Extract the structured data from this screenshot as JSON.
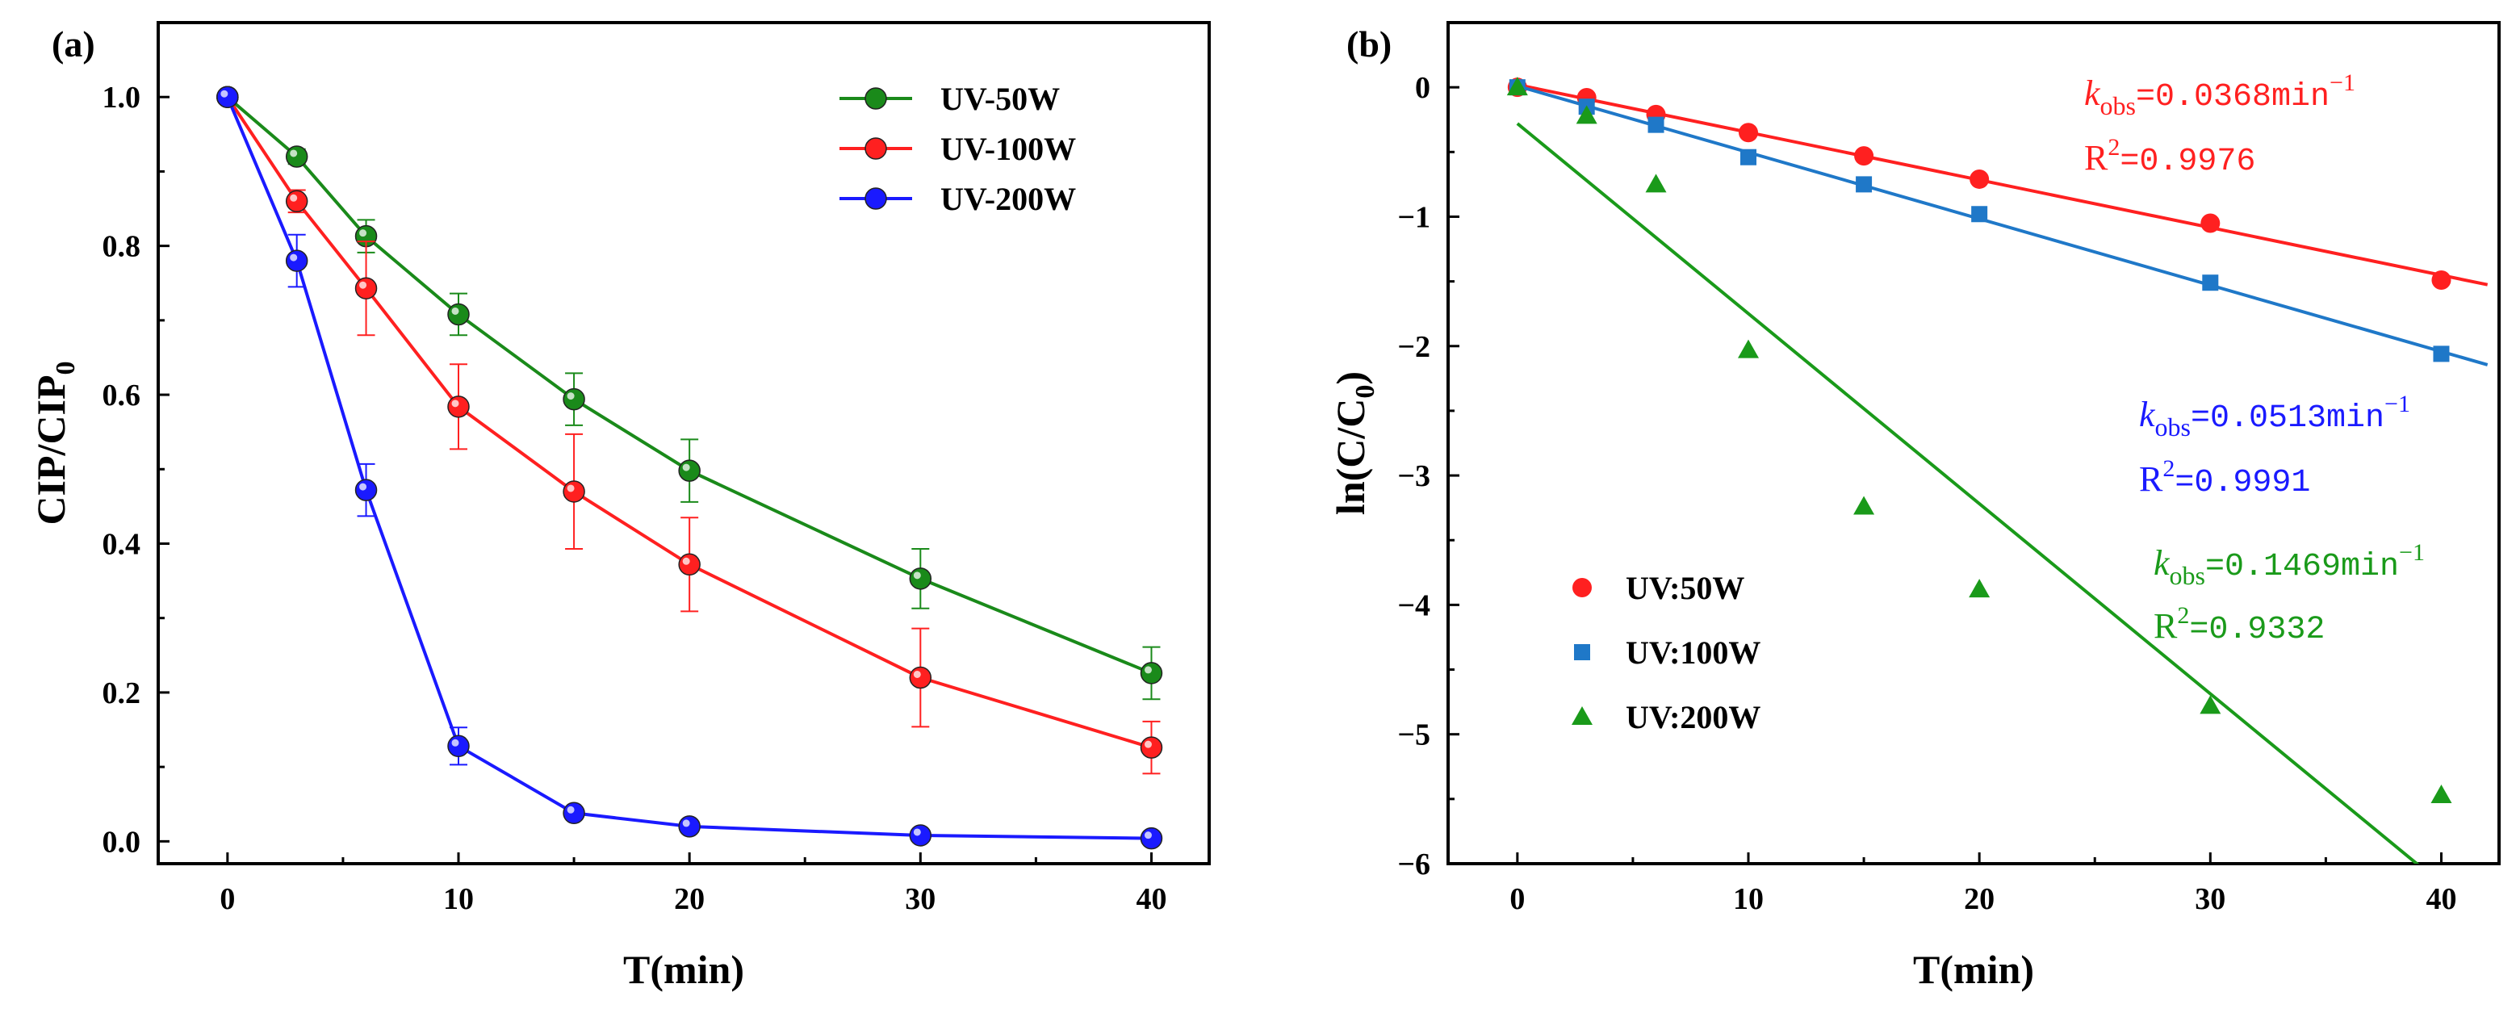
{
  "chart_data": [
    {
      "panel": "(a)",
      "type": "line",
      "xlabel": "T(min)",
      "ylabel_main": "CIP/CIP",
      "ylabel_sub": "0",
      "xlim": [
        -3,
        42.5
      ],
      "ylim": [
        -0.03,
        1.1
      ],
      "xticks": [
        "0",
        "10",
        "20",
        "30",
        "40"
      ],
      "yticks": [
        "0.0",
        "0.2",
        "0.4",
        "0.6",
        "0.8",
        "1.0"
      ],
      "legend_position": "top-right",
      "x": [
        0,
        3,
        6,
        10,
        15,
        20,
        30,
        40
      ],
      "series": [
        {
          "name": "UV-50W",
          "color": "#1a8a1a",
          "values": [
            1.0,
            0.92,
            0.813,
            0.708,
            0.594,
            0.498,
            0.353,
            0.226
          ],
          "errors": [
            0.0,
            0.01,
            0.022,
            0.028,
            0.035,
            0.042,
            0.04,
            0.035
          ]
        },
        {
          "name": "UV-100W",
          "color": "#ff2020",
          "values": [
            1.0,
            0.86,
            0.743,
            0.584,
            0.47,
            0.372,
            0.22,
            0.126
          ],
          "errors": [
            0.0,
            0.015,
            0.063,
            0.057,
            0.077,
            0.063,
            0.066,
            0.035
          ]
        },
        {
          "name": "UV-200W",
          "color": "#1a1aff",
          "values": [
            1.0,
            0.78,
            0.472,
            0.128,
            0.038,
            0.02,
            0.008,
            0.004
          ],
          "errors": [
            0.0,
            0.035,
            0.035,
            0.025,
            0.006,
            0.004,
            0.003,
            0.002
          ]
        }
      ]
    },
    {
      "panel": "(b)",
      "type": "scatter",
      "xlabel": "T(min)",
      "ylabel_main": "ln(C/C",
      "ylabel_sub": "0",
      "ylabel_end": ")",
      "xlim": [
        -3,
        42.5
      ],
      "ylim": [
        -6,
        0.5
      ],
      "xticks": [
        "0",
        "10",
        "20",
        "30",
        "40"
      ],
      "yticks": [
        "0",
        "−1",
        "−2",
        "−3",
        "−4",
        "−5",
        "−6"
      ],
      "legend_position": "bottom-left",
      "x": [
        0,
        3,
        6,
        10,
        15,
        20,
        30,
        40
      ],
      "series": [
        {
          "name": "UV:50W",
          "color": "#ff2020",
          "marker": "circle",
          "values": [
            0.0,
            -0.08,
            -0.21,
            -0.35,
            -0.53,
            -0.71,
            -1.05,
            -1.49
          ],
          "fit": {
            "slope": -0.0368,
            "intercept": 0.02
          },
          "k_label": "k",
          "k_sub": "obs",
          "k_value": "=0.0368min",
          "k_sup": "−1",
          "r2_label": "R",
          "r2_sup": "2",
          "r2_value": "=0.9976"
        },
        {
          "name": "UV:100W",
          "color": "#1f78c8",
          "marker": "square",
          "values": [
            0.0,
            -0.15,
            -0.29,
            -0.54,
            -0.75,
            -0.98,
            -1.51,
            -2.06
          ],
          "fit": {
            "slope": -0.0513,
            "intercept": 0.01
          },
          "k_label": "k",
          "k_sub": "obs",
          "k_value": "=0.0513min",
          "k_sup": "−1",
          "r2_label": "R",
          "r2_sup": "2",
          "r2_value": "=0.9991"
        },
        {
          "name": "UV:200W",
          "color": "#1a9a1a",
          "marker": "triangle",
          "values": [
            0.0,
            -0.22,
            -0.75,
            -2.03,
            -3.24,
            -3.88,
            -4.78,
            -5.47
          ],
          "fit": {
            "slope": -0.1469,
            "intercept": -0.28
          },
          "k_label": "k",
          "k_sub": "obs",
          "k_value": "=0.1469min",
          "k_sup": "−1",
          "r2_label": "R",
          "r2_sup": "2",
          "r2_value": "=0.9332"
        }
      ]
    }
  ]
}
